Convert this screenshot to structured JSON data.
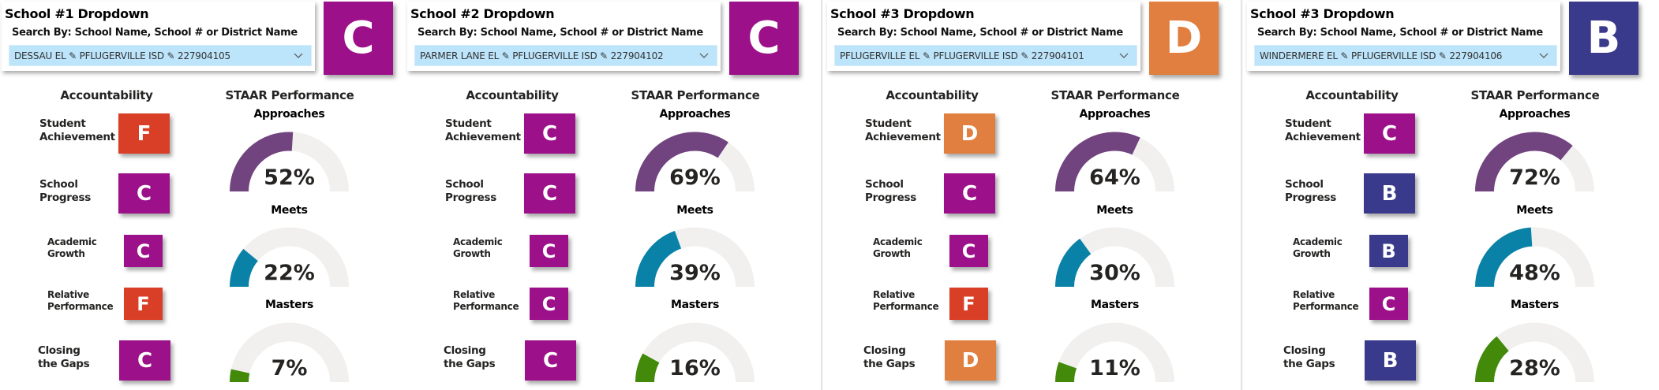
{
  "colors": {
    "grade_A": "#1f6f3f",
    "grade_B": "#3a3a8c",
    "grade_C": "#9c1189",
    "grade_D": "#e07f3f",
    "grade_F": "#d93f27",
    "approaches": "#71437f",
    "meets": "#0a82a8",
    "masters": "#438a0b",
    "gauge_track": "#f1f0ef",
    "dropdown_bg": "#bce4fa"
  },
  "common": {
    "search_hint": "Search By: School Name, School # or District Name",
    "accountability_header": "Accountability",
    "staar_header": "STAAR Performance",
    "approaches_label": "Approaches",
    "meets_label": "Meets",
    "masters_label": "Masters",
    "rows": [
      {
        "label": "Student\nAchievement"
      },
      {
        "label": "School\nProgress"
      },
      {
        "label": "Academic\nGrowth"
      },
      {
        "label": "Relative\nPerformance"
      },
      {
        "label": "Closing\nthe Gaps"
      }
    ],
    "chevron_icon": "chevron-down-icon",
    "separator_icon": "pencil-icon"
  },
  "panels": [
    {
      "title": "School #1 Dropdown",
      "dropdown_value": "DESSAU EL ✎ PFLUGERVILLE ISD ✎ 227904105",
      "overall_grade": "C",
      "grades": [
        "F",
        "C",
        "C",
        "F",
        "C"
      ],
      "approaches": 52,
      "approaches_text": "52%",
      "meets": 22,
      "meets_text": "22%",
      "masters": 7,
      "masters_text": "7%"
    },
    {
      "title": "School #2 Dropdown",
      "dropdown_value": "PARMER LANE EL ✎ PFLUGERVILLE ISD ✎ 227904102",
      "overall_grade": "C",
      "grades": [
        "C",
        "C",
        "C",
        "C",
        "C"
      ],
      "approaches": 69,
      "approaches_text": "69%",
      "meets": 39,
      "meets_text": "39%",
      "masters": 16,
      "masters_text": "16%"
    },
    {
      "title": "School #3 Dropdown",
      "dropdown_value": "PFLUGERVILLE EL ✎ PFLUGERVILLE ISD ✎ 227904101",
      "overall_grade": "D",
      "grades": [
        "D",
        "C",
        "C",
        "F",
        "D"
      ],
      "approaches": 64,
      "approaches_text": "64%",
      "meets": 30,
      "meets_text": "30%",
      "masters": 11,
      "masters_text": "11%"
    },
    {
      "title": "School #3 Dropdown",
      "dropdown_value": "WINDERMERE EL ✎ PFLUGERVILLE ISD ✎ 227904106",
      "overall_grade": "B",
      "grades": [
        "C",
        "B",
        "B",
        "C",
        "B"
      ],
      "approaches": 72,
      "approaches_text": "72%",
      "meets": 48,
      "meets_text": "48%",
      "masters": 28,
      "masters_text": "28%"
    }
  ]
}
